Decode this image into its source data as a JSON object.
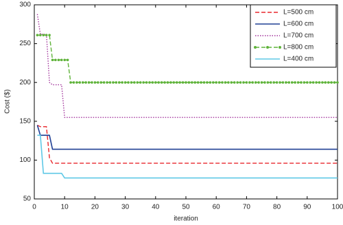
{
  "chart_data": {
    "type": "line",
    "x_label": "iteration",
    "y_label": "Cost ($)",
    "x": [
      1,
      2,
      3,
      4,
      5,
      6,
      7,
      8,
      9,
      10,
      11,
      12,
      13,
      14,
      15,
      16,
      17,
      18,
      19,
      20,
      21,
      22,
      23,
      24,
      25,
      26,
      27,
      28,
      29,
      30,
      31,
      32,
      33,
      34,
      35,
      36,
      37,
      38,
      39,
      40,
      41,
      42,
      43,
      44,
      45,
      46,
      47,
      48,
      49,
      50,
      51,
      52,
      53,
      54,
      55,
      56,
      57,
      58,
      59,
      60,
      61,
      62,
      63,
      64,
      65,
      66,
      67,
      68,
      69,
      70,
      71,
      72,
      73,
      74,
      75,
      76,
      77,
      78,
      79,
      80,
      81,
      82,
      83,
      84,
      85,
      86,
      87,
      88,
      89,
      90,
      91,
      92,
      93,
      94,
      95,
      96,
      97,
      98,
      99,
      100
    ],
    "xlim": [
      0,
      100
    ],
    "xticks": [
      0,
      10,
      20,
      30,
      40,
      50,
      60,
      70,
      80,
      90,
      100
    ],
    "ylim": [
      50,
      300
    ],
    "yticks": [
      50,
      100,
      150,
      200,
      250,
      300
    ],
    "legend": "upper right",
    "series": [
      {
        "name": "L=500 cm",
        "color": "#e8262b",
        "style": "dashed",
        "values": [
          145,
          143,
          143,
          143,
          103,
          96,
          96,
          96,
          96,
          96,
          96,
          96,
          96,
          96,
          96,
          96,
          96,
          96,
          96,
          96,
          96,
          96,
          96,
          96,
          96,
          96,
          96,
          96,
          96,
          96,
          96,
          96,
          96,
          96,
          96,
          96,
          96,
          96,
          96,
          96,
          96,
          96,
          96,
          96,
          96,
          96,
          96,
          96,
          96,
          96,
          96,
          96,
          96,
          96,
          96,
          96,
          96,
          96,
          96,
          96,
          96,
          96,
          96,
          96,
          96,
          96,
          96,
          96,
          96,
          96,
          96,
          96,
          96,
          96,
          96,
          96,
          96,
          96,
          96,
          96,
          96,
          96,
          96,
          96,
          96,
          96,
          96,
          96,
          96,
          96,
          96,
          96,
          96,
          96,
          96,
          96,
          96,
          96,
          96,
          96
        ]
      },
      {
        "name": "L=600 cm",
        "color": "#1f3f94",
        "style": "solid",
        "values": [
          145,
          132,
          132,
          132,
          132,
          114,
          114,
          114,
          114,
          114,
          114,
          114,
          114,
          114,
          114,
          114,
          114,
          114,
          114,
          114,
          114,
          114,
          114,
          114,
          114,
          114,
          114,
          114,
          114,
          114,
          114,
          114,
          114,
          114,
          114,
          114,
          114,
          114,
          114,
          114,
          114,
          114,
          114,
          114,
          114,
          114,
          114,
          114,
          114,
          114,
          114,
          114,
          114,
          114,
          114,
          114,
          114,
          114,
          114,
          114,
          114,
          114,
          114,
          114,
          114,
          114,
          114,
          114,
          114,
          114,
          114,
          114,
          114,
          114,
          114,
          114,
          114,
          114,
          114,
          114,
          114,
          114,
          114,
          114,
          114,
          114,
          114,
          114,
          114,
          114,
          114,
          114,
          114,
          114,
          114,
          114,
          114,
          114,
          114,
          114
        ]
      },
      {
        "name": "L=700 cm",
        "color": "#a0309a",
        "style": "dotted",
        "values": [
          288,
          262,
          262,
          262,
          200,
          197,
          197,
          197,
          197,
          155,
          155,
          155,
          155,
          155,
          155,
          155,
          155,
          155,
          155,
          155,
          155,
          155,
          155,
          155,
          155,
          155,
          155,
          155,
          155,
          155,
          155,
          155,
          155,
          155,
          155,
          155,
          155,
          155,
          155,
          155,
          155,
          155,
          155,
          155,
          155,
          155,
          155,
          155,
          155,
          155,
          155,
          155,
          155,
          155,
          155,
          155,
          155,
          155,
          155,
          155,
          155,
          155,
          155,
          155,
          155,
          155,
          155,
          155,
          155,
          155,
          155,
          155,
          155,
          155,
          155,
          155,
          155,
          155,
          155,
          155,
          155,
          155,
          155,
          155,
          155,
          155,
          155,
          155,
          155,
          155,
          155,
          155,
          155,
          155,
          155,
          155,
          155,
          155,
          155,
          155
        ]
      },
      {
        "name": "L=800 cm",
        "color": "#5fb33a",
        "style": "dashed",
        "marker": "circle",
        "values": [
          261,
          261,
          261,
          261,
          261,
          229,
          229,
          229,
          229,
          229,
          229,
          200,
          200,
          200,
          200,
          200,
          200,
          200,
          200,
          200,
          200,
          200,
          200,
          200,
          200,
          200,
          200,
          200,
          200,
          200,
          200,
          200,
          200,
          200,
          200,
          200,
          200,
          200,
          200,
          200,
          200,
          200,
          200,
          200,
          200,
          200,
          200,
          200,
          200,
          200,
          200,
          200,
          200,
          200,
          200,
          200,
          200,
          200,
          200,
          200,
          200,
          200,
          200,
          200,
          200,
          200,
          200,
          200,
          200,
          200,
          200,
          200,
          200,
          200,
          200,
          200,
          200,
          200,
          200,
          200,
          200,
          200,
          200,
          200,
          200,
          200,
          200,
          200,
          200,
          200,
          200,
          200,
          200,
          200,
          200,
          200,
          200,
          200,
          200,
          200
        ]
      },
      {
        "name": "L=400 cm",
        "color": "#5ec8e6",
        "style": "solid",
        "values": [
          132,
          132,
          83,
          83,
          83,
          83,
          83,
          83,
          83,
          77,
          77,
          77,
          77,
          77,
          77,
          77,
          77,
          77,
          77,
          77,
          77,
          77,
          77,
          77,
          77,
          77,
          77,
          77,
          77,
          77,
          77,
          77,
          77,
          77,
          77,
          77,
          77,
          77,
          77,
          77,
          77,
          77,
          77,
          77,
          77,
          77,
          77,
          77,
          77,
          77,
          77,
          77,
          77,
          77,
          77,
          77,
          77,
          77,
          77,
          77,
          77,
          77,
          77,
          77,
          77,
          77,
          77,
          77,
          77,
          77,
          77,
          77,
          77,
          77,
          77,
          77,
          77,
          77,
          77,
          77,
          77,
          77,
          77,
          77,
          77,
          77,
          77,
          77,
          77,
          77,
          77,
          77,
          77,
          77,
          77,
          77,
          77,
          77,
          77,
          77
        ]
      }
    ]
  }
}
